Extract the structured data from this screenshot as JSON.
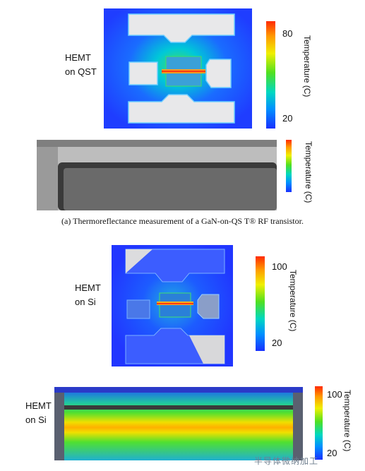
{
  "figure_a": {
    "image_label_line1": "HEMT",
    "image_label_line2": "on QST",
    "colorbar_title": "Temperature (C)",
    "colorbar_max": "80",
    "colorbar_min": "20",
    "strip_colorbar_title": "Temperature (C)",
    "caption": "(a) Thermoreflectance measurement of a GaN-on-QS T® RF transistor."
  },
  "figure_b": {
    "image_label_line1": "HEMT",
    "image_label_line2": "on Si",
    "colorbar_title": "Temperature (C)",
    "colorbar_max": "100",
    "colorbar_min": "20",
    "strip_label_line1": "HEMT",
    "strip_label_line2": "on Si",
    "strip_colorbar_title": "Temperature (C)",
    "strip_colorbar_max": "100",
    "strip_colorbar_min": "20"
  },
  "watermark": "半导体微纳加工"
}
